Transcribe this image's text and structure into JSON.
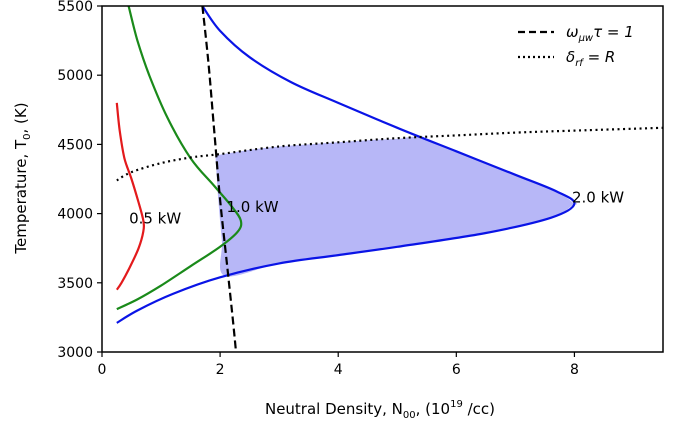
{
  "chart_data": {
    "type": "line",
    "xlabel": "Neutral Density, N",
    "xlabel_sub": "00",
    "xlabel_rest": ", (10",
    "xlabel_sup": "19",
    "xlabel_end": " /cc)",
    "ylabel": "Temperature, T",
    "ylabel_sub": "0",
    "ylabel_end": ", (K)",
    "xlim": [
      0,
      9.5
    ],
    "ylim": [
      3000,
      5500
    ],
    "xticks": [
      "0",
      "2",
      "4",
      "6",
      "8"
    ],
    "xtick_values": [
      0,
      2,
      4,
      6,
      8
    ],
    "yticks": [
      "3000",
      "3500",
      "4000",
      "4500",
      "5000",
      "5500"
    ],
    "ytick_values": [
      3000,
      3500,
      4000,
      4500,
      5000,
      5500
    ],
    "grid": false,
    "legend_position": "top-right",
    "legend": [
      {
        "label_main": "ω",
        "label_sub": "μw",
        "label_rest": "τ = 1",
        "style": "dashed",
        "color": "#000000"
      },
      {
        "label_main": "δ",
        "label_sub": "rf",
        "label_rest": " = R",
        "style": "dotted",
        "color": "#000000"
      }
    ],
    "series": [
      {
        "name": "0.5 kW",
        "color": "#e31a1c",
        "style": "solid",
        "points": [
          [
            0.25,
            4800
          ],
          [
            0.3,
            4600
          ],
          [
            0.38,
            4400
          ],
          [
            0.5,
            4250
          ],
          [
            0.62,
            4080
          ],
          [
            0.7,
            3950
          ],
          [
            0.7,
            3870
          ],
          [
            0.62,
            3750
          ],
          [
            0.48,
            3620
          ],
          [
            0.33,
            3500
          ],
          [
            0.25,
            3450
          ]
        ]
      },
      {
        "name": "1.0 kW",
        "color": "#1a8a1a",
        "style": "solid",
        "points": [
          [
            0.45,
            5500
          ],
          [
            0.6,
            5250
          ],
          [
            0.8,
            5000
          ],
          [
            1.1,
            4700
          ],
          [
            1.5,
            4400
          ],
          [
            1.9,
            4200
          ],
          [
            2.2,
            4050
          ],
          [
            2.35,
            3950
          ],
          [
            2.3,
            3870
          ],
          [
            2.0,
            3760
          ],
          [
            1.5,
            3620
          ],
          [
            1.0,
            3480
          ],
          [
            0.6,
            3380
          ],
          [
            0.25,
            3310
          ]
        ]
      },
      {
        "name": "2.0 kW",
        "color": "#0a14e6",
        "style": "solid",
        "points": [
          [
            1.7,
            5500
          ],
          [
            2.0,
            5320
          ],
          [
            2.5,
            5130
          ],
          [
            3.2,
            4950
          ],
          [
            4.0,
            4800
          ],
          [
            5.0,
            4620
          ],
          [
            6.0,
            4450
          ],
          [
            7.0,
            4280
          ],
          [
            7.7,
            4160
          ],
          [
            8.0,
            4070
          ],
          [
            7.6,
            3970
          ],
          [
            6.5,
            3860
          ],
          [
            5.0,
            3760
          ],
          [
            4.0,
            3700
          ],
          [
            3.0,
            3640
          ],
          [
            2.0,
            3540
          ],
          [
            1.2,
            3420
          ],
          [
            0.6,
            3300
          ],
          [
            0.25,
            3210
          ]
        ]
      },
      {
        "name": "ω_μw τ = 1",
        "color": "#000000",
        "style": "dashed",
        "points": [
          [
            1.7,
            5500
          ],
          [
            1.8,
            5100
          ],
          [
            1.9,
            4600
          ],
          [
            2.0,
            4100
          ],
          [
            2.1,
            3700
          ],
          [
            2.2,
            3300
          ],
          [
            2.27,
            3000
          ]
        ]
      },
      {
        "name": "δ_rf = R",
        "color": "#000000",
        "style": "dotted",
        "points": [
          [
            0.25,
            4240
          ],
          [
            0.5,
            4300
          ],
          [
            1.0,
            4365
          ],
          [
            1.5,
            4405
          ],
          [
            2.0,
            4430
          ],
          [
            3.0,
            4485
          ],
          [
            4.0,
            4515
          ],
          [
            5.0,
            4545
          ],
          [
            6.0,
            4565
          ],
          [
            7.0,
            4585
          ],
          [
            8.0,
            4600
          ],
          [
            9.5,
            4620
          ]
        ]
      }
    ],
    "shaded_region": {
      "color": "#b3b3f7",
      "upper": [
        [
          1.92,
          4420
        ],
        [
          2.5,
          4460
        ],
        [
          3.0,
          4485
        ],
        [
          3.5,
          4500
        ],
        [
          4.0,
          4515
        ],
        [
          4.5,
          4530
        ],
        [
          5.0,
          4540
        ],
        [
          5.4,
          4550
        ],
        [
          6.0,
          4450
        ],
        [
          7.0,
          4280
        ],
        [
          7.7,
          4160
        ],
        [
          8.0,
          4070
        ]
      ],
      "lower": [
        [
          8.0,
          4070
        ],
        [
          7.6,
          3970
        ],
        [
          6.5,
          3860
        ],
        [
          5.0,
          3760
        ],
        [
          4.0,
          3700
        ],
        [
          3.0,
          3640
        ],
        [
          2.08,
          3550
        ],
        [
          2.03,
          3800
        ],
        [
          1.97,
          4100
        ],
        [
          1.92,
          4420
        ]
      ]
    },
    "annotations": [
      {
        "text": "0.5 kW",
        "x": 0.9,
        "y": 3930
      },
      {
        "text": "1.0 kW",
        "x": 2.55,
        "y": 4010
      },
      {
        "text": "2.0 kW",
        "x": 8.4,
        "y": 4080
      }
    ]
  }
}
